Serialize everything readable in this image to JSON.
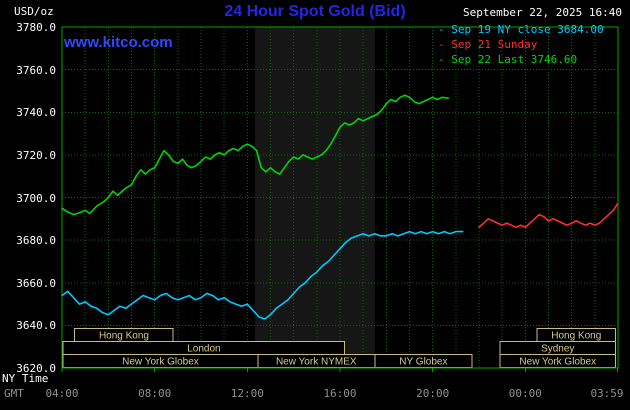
{
  "header": {
    "unit_label": "USD/oz",
    "title": "24 Hour Spot Gold (Bid)",
    "datetime": "September 22, 2025 16:40",
    "watermark": "www.kitco.com",
    "legend": [
      {
        "label": "- Sep 19 NY close 3684.00",
        "color": "#00c8ff"
      },
      {
        "label": "- Sep 21 Sunday",
        "color": "#ff2d2d"
      },
      {
        "label": "- Sep 22 Last 3746.60",
        "color": "#00d40a"
      }
    ]
  },
  "axes": {
    "y_ticks": [
      "3780.0",
      "3760.0",
      "3740.0",
      "3720.0",
      "3700.0",
      "3680.0",
      "3660.0",
      "3640.0",
      "3620.0"
    ],
    "x_row1_label": "NY Time",
    "x_row2_label": "GMT",
    "x_row1_ticks": [
      "00:00",
      "04:00",
      "08:00",
      "12:00",
      "16:00",
      "20:00",
      "23:59"
    ],
    "x_row2_ticks": [
      "04:00",
      "08:00",
      "12:00",
      "16:00",
      "20:00",
      "00:00",
      "03:59"
    ]
  },
  "sessions": [
    {
      "row": 0,
      "start": 0.55,
      "end": 4.8,
      "label": "Hong Kong"
    },
    {
      "row": 0,
      "start": 20.5,
      "end": 23.9,
      "label": "Hong Kong"
    },
    {
      "row": 1,
      "start": 0.05,
      "end": 12.2,
      "label": "London"
    },
    {
      "row": 1,
      "start": 18.9,
      "end": 23.9,
      "label": "Sydney"
    },
    {
      "row": 2,
      "start": 0.05,
      "end": 8.45,
      "label": "New York Globex"
    },
    {
      "row": 2,
      "start": 8.45,
      "end": 13.5,
      "label": "New York NYMEX"
    },
    {
      "row": 2,
      "start": 13.5,
      "end": 17.7,
      "label": "NY Globex"
    },
    {
      "row": 2,
      "start": 18.9,
      "end": 23.9,
      "label": "New York Globex"
    }
  ],
  "colors": {
    "background": "#000000",
    "grid": "#0e640e",
    "frame": "#00a800",
    "nymex_band": "#161616",
    "session_border": "#c8ba80",
    "session_text": "#d6c98e",
    "title_blue": "#2525e8",
    "watermark_blue": "#2e49ff",
    "gmt_gray": "#909090"
  },
  "chart_data": {
    "type": "line",
    "title": "24 Hour Spot Gold (Bid)",
    "x_axis": {
      "label": "NY Time",
      "range_hours": [
        0,
        24
      ],
      "ticks": [
        "00:00",
        "04:00",
        "08:00",
        "12:00",
        "16:00",
        "20:00",
        "23:59"
      ],
      "gmt_ticks": [
        "04:00",
        "08:00",
        "12:00",
        "16:00",
        "20:00",
        "00:00",
        "03:59"
      ]
    },
    "y_axis": {
      "label": "USD/oz",
      "range": [
        3620,
        3780
      ],
      "tick_step": 20
    },
    "nymex_band_hours": [
      8.33,
      13.5
    ],
    "series": [
      {
        "name": "Sep 19 NY close 3684.00",
        "color": "#00c8ff",
        "points": [
          [
            0,
            3654
          ],
          [
            0.25,
            3656
          ],
          [
            0.5,
            3653
          ],
          [
            0.75,
            3650
          ],
          [
            1,
            3651
          ],
          [
            1.25,
            3649
          ],
          [
            1.5,
            3648
          ],
          [
            1.75,
            3646
          ],
          [
            2,
            3645
          ],
          [
            2.25,
            3647
          ],
          [
            2.5,
            3649
          ],
          [
            2.75,
            3648
          ],
          [
            3,
            3650
          ],
          [
            3.25,
            3652
          ],
          [
            3.5,
            3654
          ],
          [
            3.75,
            3653
          ],
          [
            4,
            3652
          ],
          [
            4.25,
            3654
          ],
          [
            4.5,
            3655
          ],
          [
            4.75,
            3653
          ],
          [
            5,
            3652
          ],
          [
            5.25,
            3653
          ],
          [
            5.5,
            3654
          ],
          [
            5.75,
            3652
          ],
          [
            6,
            3653
          ],
          [
            6.25,
            3655
          ],
          [
            6.5,
            3654
          ],
          [
            6.75,
            3652
          ],
          [
            7,
            3653
          ],
          [
            7.25,
            3651
          ],
          [
            7.5,
            3650
          ],
          [
            7.75,
            3649
          ],
          [
            8,
            3650
          ],
          [
            8.25,
            3647
          ],
          [
            8.5,
            3644
          ],
          [
            8.75,
            3643
          ],
          [
            9,
            3645
          ],
          [
            9.25,
            3648
          ],
          [
            9.5,
            3650
          ],
          [
            9.75,
            3652
          ],
          [
            10,
            3655
          ],
          [
            10.25,
            3658
          ],
          [
            10.5,
            3660
          ],
          [
            10.75,
            3663
          ],
          [
            11,
            3665
          ],
          [
            11.25,
            3668
          ],
          [
            11.5,
            3670
          ],
          [
            11.75,
            3673
          ],
          [
            12,
            3676
          ],
          [
            12.25,
            3679
          ],
          [
            12.5,
            3681
          ],
          [
            12.75,
            3682
          ],
          [
            13,
            3683
          ],
          [
            13.25,
            3682
          ],
          [
            13.5,
            3683
          ],
          [
            13.75,
            3682
          ],
          [
            14,
            3682
          ],
          [
            14.25,
            3683
          ],
          [
            14.5,
            3682
          ],
          [
            14.75,
            3683
          ],
          [
            15,
            3684
          ],
          [
            15.25,
            3683
          ],
          [
            15.5,
            3684
          ],
          [
            15.75,
            3683
          ],
          [
            16,
            3684
          ],
          [
            16.25,
            3683
          ],
          [
            16.5,
            3684
          ],
          [
            16.75,
            3683
          ],
          [
            17,
            3684
          ],
          [
            17.3,
            3684
          ]
        ]
      },
      {
        "name": "Sep 21 Sunday",
        "color": "#ff2d2d",
        "points": [
          [
            18,
            3686
          ],
          [
            18.2,
            3688
          ],
          [
            18.4,
            3690
          ],
          [
            18.6,
            3689
          ],
          [
            18.8,
            3688
          ],
          [
            19,
            3687
          ],
          [
            19.2,
            3688
          ],
          [
            19.4,
            3687
          ],
          [
            19.6,
            3686
          ],
          [
            19.8,
            3687
          ],
          [
            20,
            3686
          ],
          [
            20.2,
            3688
          ],
          [
            20.4,
            3690
          ],
          [
            20.6,
            3692
          ],
          [
            20.8,
            3691
          ],
          [
            21,
            3689
          ],
          [
            21.2,
            3690
          ],
          [
            21.4,
            3689
          ],
          [
            21.6,
            3688
          ],
          [
            21.8,
            3687
          ],
          [
            22,
            3688
          ],
          [
            22.2,
            3689
          ],
          [
            22.4,
            3688
          ],
          [
            22.6,
            3687
          ],
          [
            22.8,
            3688
          ],
          [
            23,
            3687
          ],
          [
            23.2,
            3688
          ],
          [
            23.4,
            3690
          ],
          [
            23.6,
            3692
          ],
          [
            23.8,
            3694
          ],
          [
            23.98,
            3697
          ]
        ]
      },
      {
        "name": "Sep 22 Last 3746.60",
        "color": "#00d40a",
        "points": [
          [
            0,
            3695
          ],
          [
            0.2,
            3693.5
          ],
          [
            0.5,
            3692
          ],
          [
            0.8,
            3693
          ],
          [
            1,
            3694
          ],
          [
            1.2,
            3692.5
          ],
          [
            1.5,
            3696
          ],
          [
            1.8,
            3698
          ],
          [
            2,
            3700
          ],
          [
            2.2,
            3703
          ],
          [
            2.4,
            3701
          ],
          [
            2.7,
            3704
          ],
          [
            3,
            3706
          ],
          [
            3.2,
            3710
          ],
          [
            3.4,
            3713
          ],
          [
            3.6,
            3711
          ],
          [
            3.8,
            3713
          ],
          [
            4,
            3714
          ],
          [
            4.2,
            3718
          ],
          [
            4.4,
            3722
          ],
          [
            4.6,
            3720
          ],
          [
            4.8,
            3717
          ],
          [
            5,
            3716
          ],
          [
            5.2,
            3718
          ],
          [
            5.4,
            3715
          ],
          [
            5.6,
            3714
          ],
          [
            5.8,
            3715
          ],
          [
            6,
            3717
          ],
          [
            6.2,
            3719
          ],
          [
            6.4,
            3718
          ],
          [
            6.6,
            3720
          ],
          [
            6.8,
            3721
          ],
          [
            7,
            3720
          ],
          [
            7.2,
            3722
          ],
          [
            7.4,
            3723
          ],
          [
            7.6,
            3722
          ],
          [
            7.8,
            3724
          ],
          [
            8,
            3725
          ],
          [
            8.2,
            3724
          ],
          [
            8.4,
            3722
          ],
          [
            8.6,
            3714
          ],
          [
            8.8,
            3712
          ],
          [
            9,
            3714
          ],
          [
            9.2,
            3712
          ],
          [
            9.4,
            3711
          ],
          [
            9.6,
            3714
          ],
          [
            9.8,
            3717
          ],
          [
            10,
            3719
          ],
          [
            10.2,
            3718
          ],
          [
            10.4,
            3720
          ],
          [
            10.6,
            3719
          ],
          [
            10.8,
            3718
          ],
          [
            11,
            3719
          ],
          [
            11.2,
            3720
          ],
          [
            11.4,
            3722
          ],
          [
            11.6,
            3725
          ],
          [
            11.8,
            3729
          ],
          [
            12,
            3733
          ],
          [
            12.2,
            3735
          ],
          [
            12.4,
            3734
          ],
          [
            12.6,
            3735
          ],
          [
            12.8,
            3737
          ],
          [
            13,
            3736
          ],
          [
            13.2,
            3737
          ],
          [
            13.4,
            3738
          ],
          [
            13.6,
            3739
          ],
          [
            13.8,
            3741
          ],
          [
            14,
            3744
          ],
          [
            14.2,
            3746
          ],
          [
            14.4,
            3745
          ],
          [
            14.6,
            3747
          ],
          [
            14.8,
            3748
          ],
          [
            15,
            3747
          ],
          [
            15.2,
            3745
          ],
          [
            15.4,
            3744
          ],
          [
            15.6,
            3745
          ],
          [
            15.8,
            3746
          ],
          [
            16,
            3747
          ],
          [
            16.2,
            3746
          ],
          [
            16.4,
            3747
          ],
          [
            16.67,
            3746.6
          ]
        ]
      }
    ]
  }
}
